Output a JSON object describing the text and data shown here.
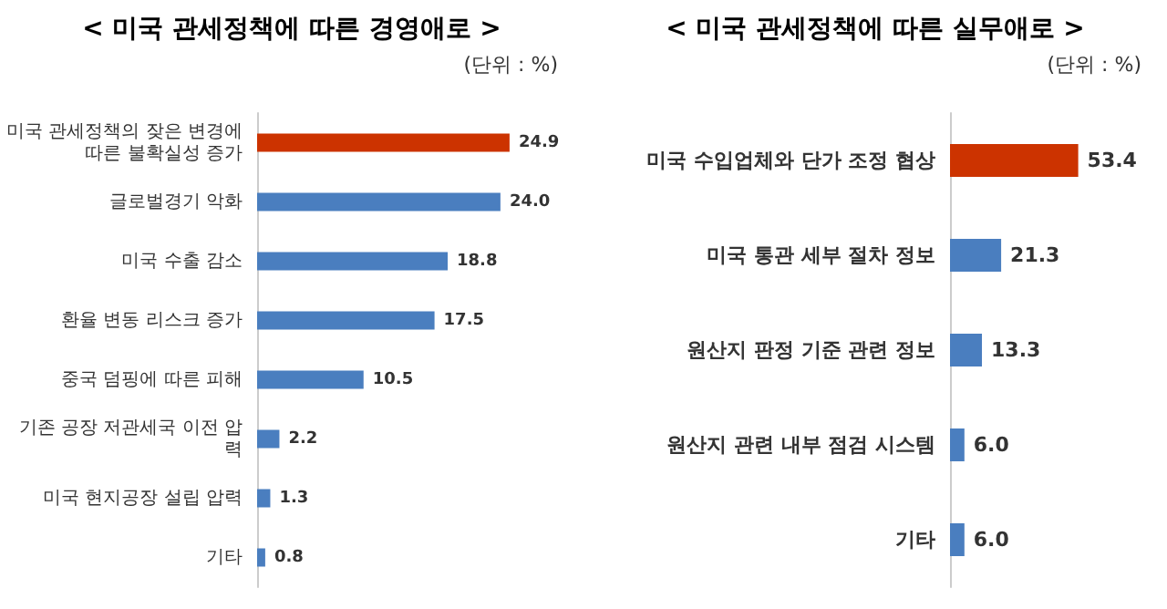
{
  "chart_data": [
    {
      "type": "bar",
      "orientation": "horizontal",
      "title": "< 미국 관세정책에 따른 경영애로 >",
      "annotations": [
        "(단위 : %)"
      ],
      "tick_labels": "y",
      "categories": [
        "미국 관세정책의 잦은 변경에 따른 불확실성 증가",
        "글로벌경기 악화",
        "미국 수출 감소",
        "환율 변동 리스크 증가",
        "중국 덤핑에 따른 피해",
        "기존 공장 저관세국 이전 압력",
        "미국 현지공장 설립 압력",
        "기타"
      ],
      "values": [
        24.9,
        24.0,
        18.8,
        17.5,
        10.5,
        2.2,
        1.3,
        0.8
      ],
      "value_labels": [
        "24.9",
        "24.0",
        "18.8",
        "17.5",
        "10.5",
        "2.2",
        "1.3",
        "0.8"
      ],
      "colors": [
        "#cc3300",
        "#4a7ebf",
        "#4a7ebf",
        "#4a7ebf",
        "#4a7ebf",
        "#4a7ebf",
        "#4a7ebf",
        "#4a7ebf"
      ]
    },
    {
      "type": "bar",
      "orientation": "horizontal",
      "title": "< 미국 관세정책에 따른 실무애로 >",
      "annotations": [
        "(단위 : %)"
      ],
      "tick_labels": "y",
      "categories": [
        "미국 수입업체와 단가 조정 협상",
        "미국 통관 세부 절차 정보",
        "원산지 판정 기준 관련 정보",
        "원산지 관련 내부 점검 시스템",
        "기타"
      ],
      "values": [
        53.4,
        21.3,
        13.3,
        6.0,
        6.0
      ],
      "value_labels": [
        "53.4",
        "21.3",
        "13.3",
        "6.0",
        "6.0"
      ],
      "colors": [
        "#cc3300",
        "#4a7ebf",
        "#4a7ebf",
        "#4a7ebf",
        "#4a7ebf"
      ]
    }
  ]
}
